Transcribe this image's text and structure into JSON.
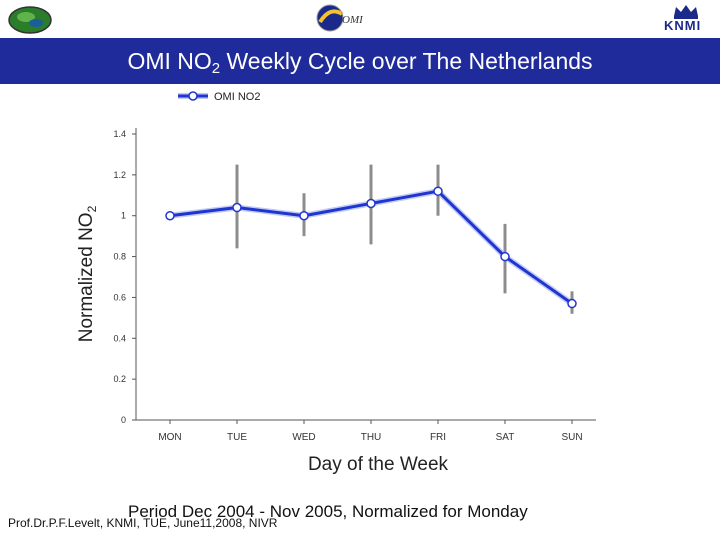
{
  "header": {
    "title_main": "OMI NO",
    "title_sub": "2",
    "title_rest": " Weekly Cycle over The Netherlands",
    "mid_logo_text": "OMI",
    "right_logo_text": "KNMI",
    "bar_color": "#1f2b9a"
  },
  "chart_data": {
    "type": "line",
    "title": "",
    "xlabel": "Day of the Week",
    "ylabel_main": "Normalized NO",
    "ylabel_sub": "2",
    "categories": [
      "MON",
      "TUE",
      "WED",
      "THU",
      "FRI",
      "SAT",
      "SUN"
    ],
    "series": [
      {
        "name": "OMI NO2",
        "color": "#1f35d0",
        "values": [
          1.0,
          1.04,
          1.0,
          1.06,
          1.12,
          0.8,
          0.57
        ],
        "error_low": [
          1.0,
          0.84,
          0.9,
          0.86,
          1.0,
          0.62,
          0.52
        ],
        "error_high": [
          1.0,
          1.25,
          1.11,
          1.25,
          1.25,
          0.96,
          0.63
        ]
      }
    ],
    "ylim": [
      0,
      1.4
    ],
    "yticks": [
      "0",
      "0.2",
      "0.4",
      "0.6",
      "0.8",
      "1",
      "1.2",
      "1.4"
    ],
    "grid": false,
    "legend_position": "top-left"
  },
  "footer": {
    "period": "Period Dec 2004 - Nov 2005, Normalized for Monday",
    "author": "Prof.Dr.P.F.Levelt, KNMI, TUE, June11,2008, NIVR"
  }
}
